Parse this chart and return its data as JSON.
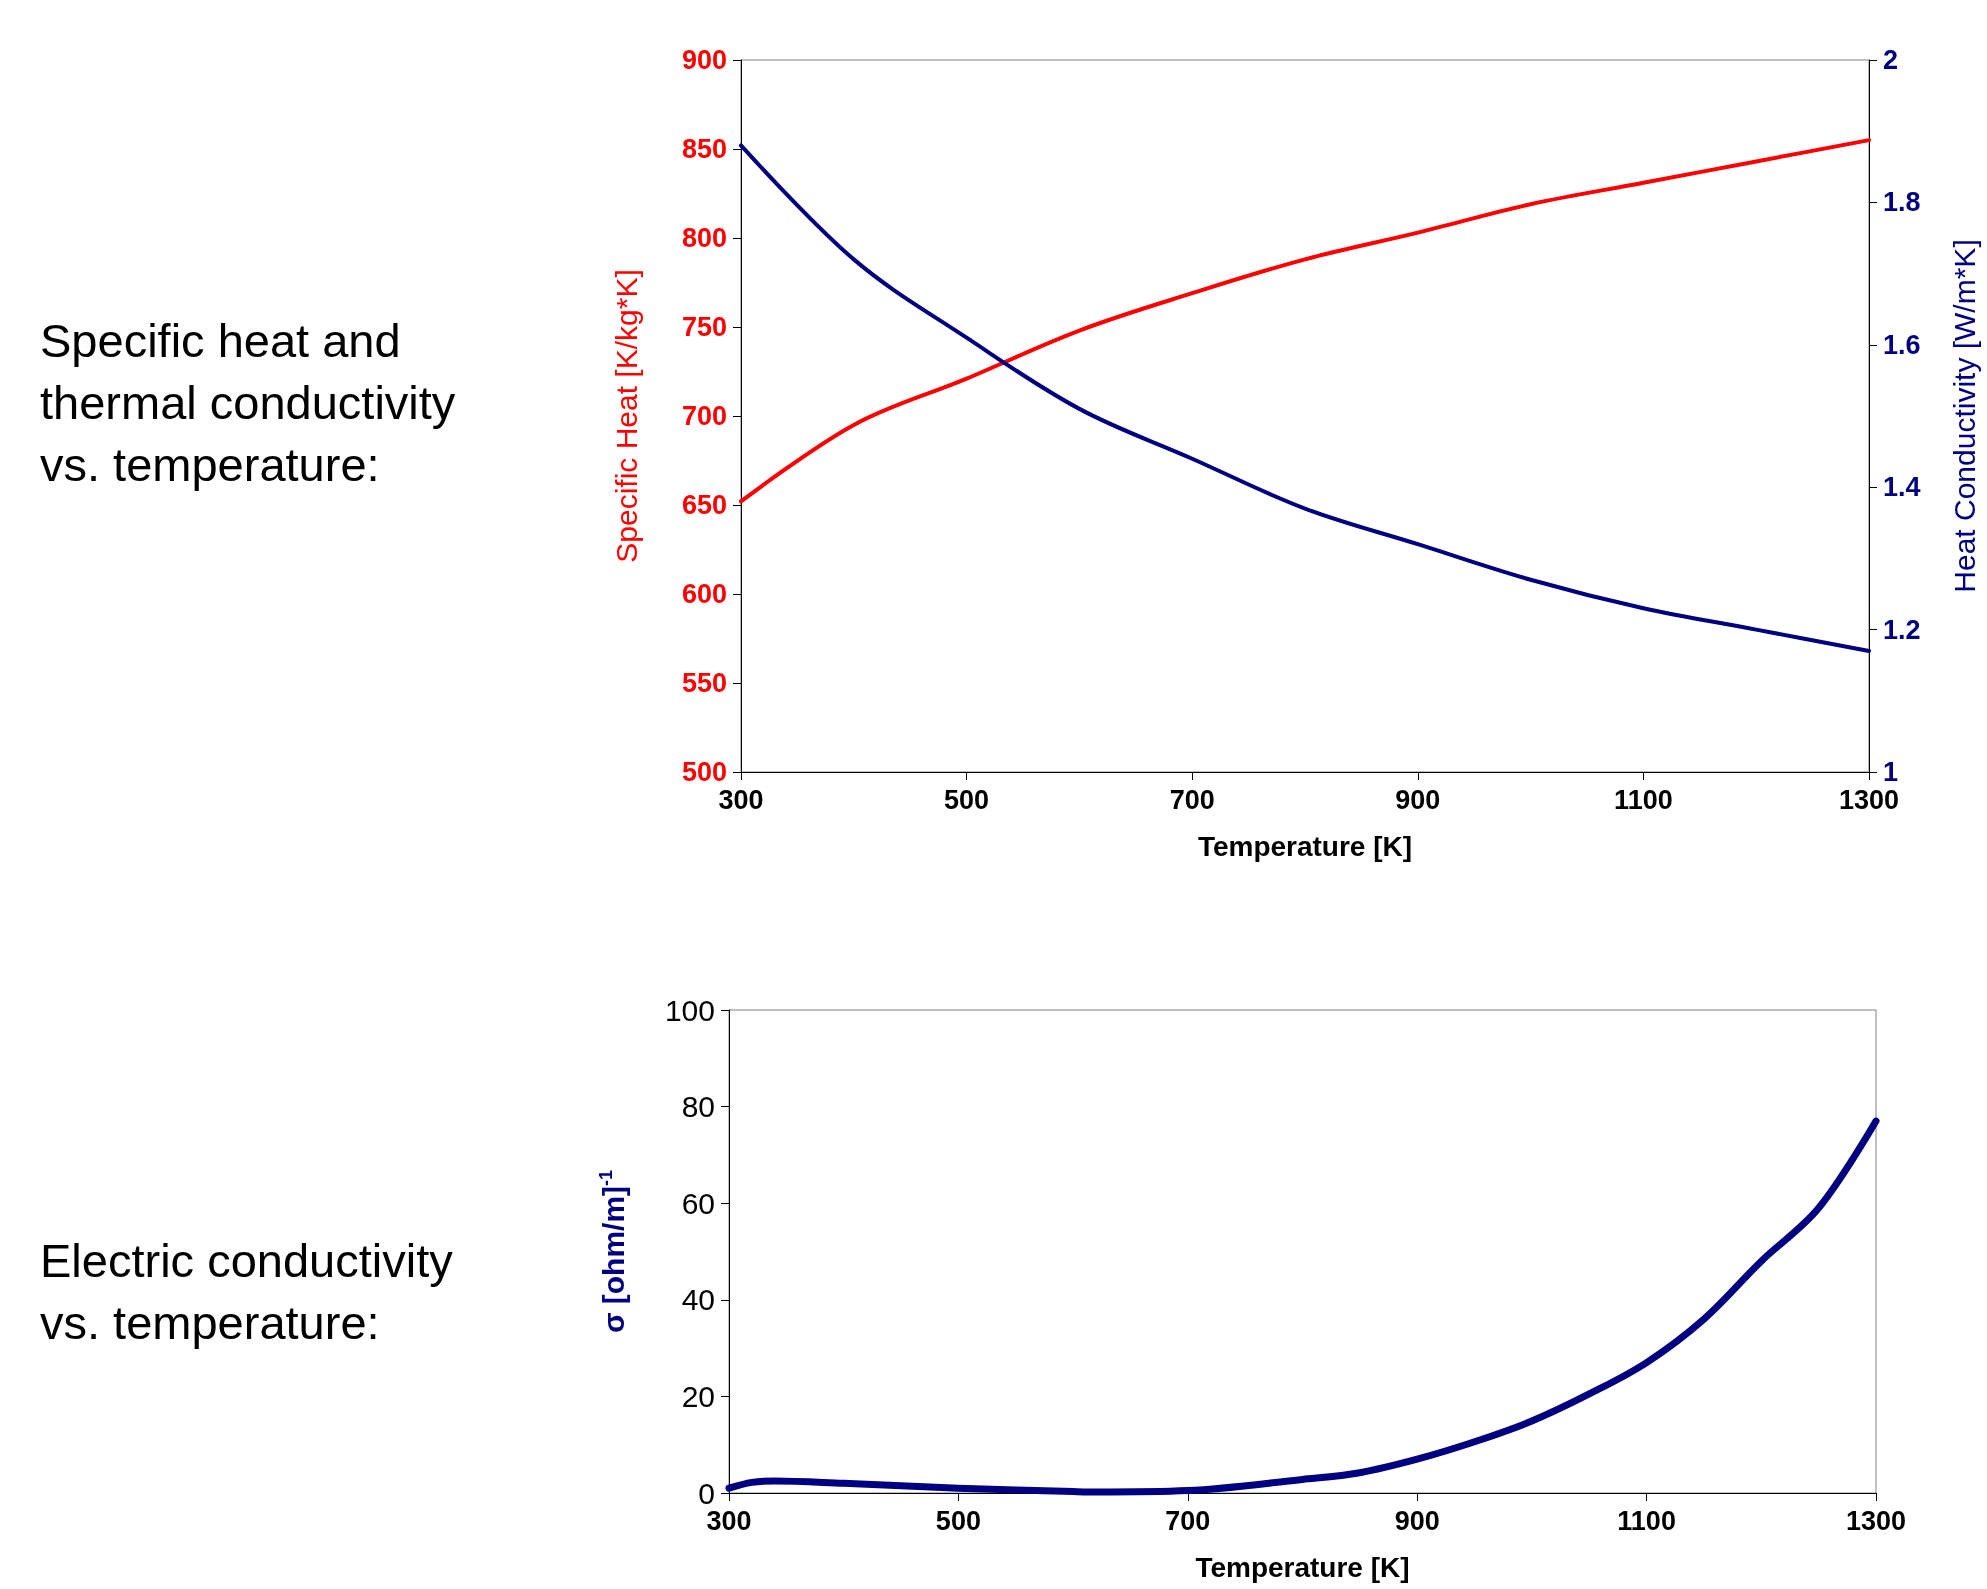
{
  "chart_data": [
    {
      "type": "line",
      "title": "Specific heat and thermal conductivity vs. temperature:",
      "xlabel": "Temperature [K]",
      "ylabel": "Specific Heat [K/kg*K]",
      "y2label": "Heat Conductivity [W/m*K]",
      "xlim": [
        300,
        1300
      ],
      "xticks": [
        300,
        500,
        700,
        900,
        1100,
        1300
      ],
      "ylim": [
        500,
        900
      ],
      "yticks": [
        500,
        550,
        600,
        650,
        700,
        750,
        800,
        850,
        900
      ],
      "y2lim": [
        1,
        2
      ],
      "y2ticks": [
        1,
        1.2,
        1.4,
        1.6,
        1.8,
        2
      ],
      "grid": false,
      "marker": "none",
      "line_style": "solid",
      "x": [
        300,
        400,
        500,
        600,
        700,
        800,
        900,
        1000,
        1100,
        1200,
        1300
      ],
      "series": [
        {
          "color": "#ff0000",
          "values": [
            652,
            695,
            721,
            748,
            769,
            788,
            803,
            819,
            831,
            843,
            855
          ]
        },
        {
          "color": "#000080",
          "axis": "y2",
          "values": [
            1.88,
            1.72,
            1.61,
            1.51,
            1.44,
            1.37,
            1.32,
            1.27,
            1.23,
            1.2,
            1.17
          ]
        }
      ]
    },
    {
      "type": "line",
      "title": "Electric conductivity vs. temperature:",
      "xlabel": "Temperature [K]",
      "ylabel": "σ [ohm/m]$^{-1}$",
      "xlim": [
        300,
        1300
      ],
      "xticks": [
        300,
        500,
        700,
        900,
        1100,
        1300
      ],
      "ylim": [
        0,
        100
      ],
      "yticks": [
        0,
        20,
        40,
        60,
        80,
        100
      ],
      "grid": false,
      "marker": "none",
      "line_style": "solid",
      "x": [
        300,
        320,
        340,
        400,
        500,
        600,
        620,
        700,
        800,
        850,
        900,
        950,
        1000,
        1050,
        1100,
        1150,
        1200,
        1250,
        1300
      ],
      "series": [
        {
          "color": "#000080",
          "values": [
            1,
            2.2,
            2.5,
            2,
            1,
            0.3,
            0.2,
            0.5,
            2.8,
            4.2,
            7,
            10.6,
            14.9,
            20.5,
            27,
            36,
            48,
            59,
            77
          ]
        }
      ]
    }
  ]
}
